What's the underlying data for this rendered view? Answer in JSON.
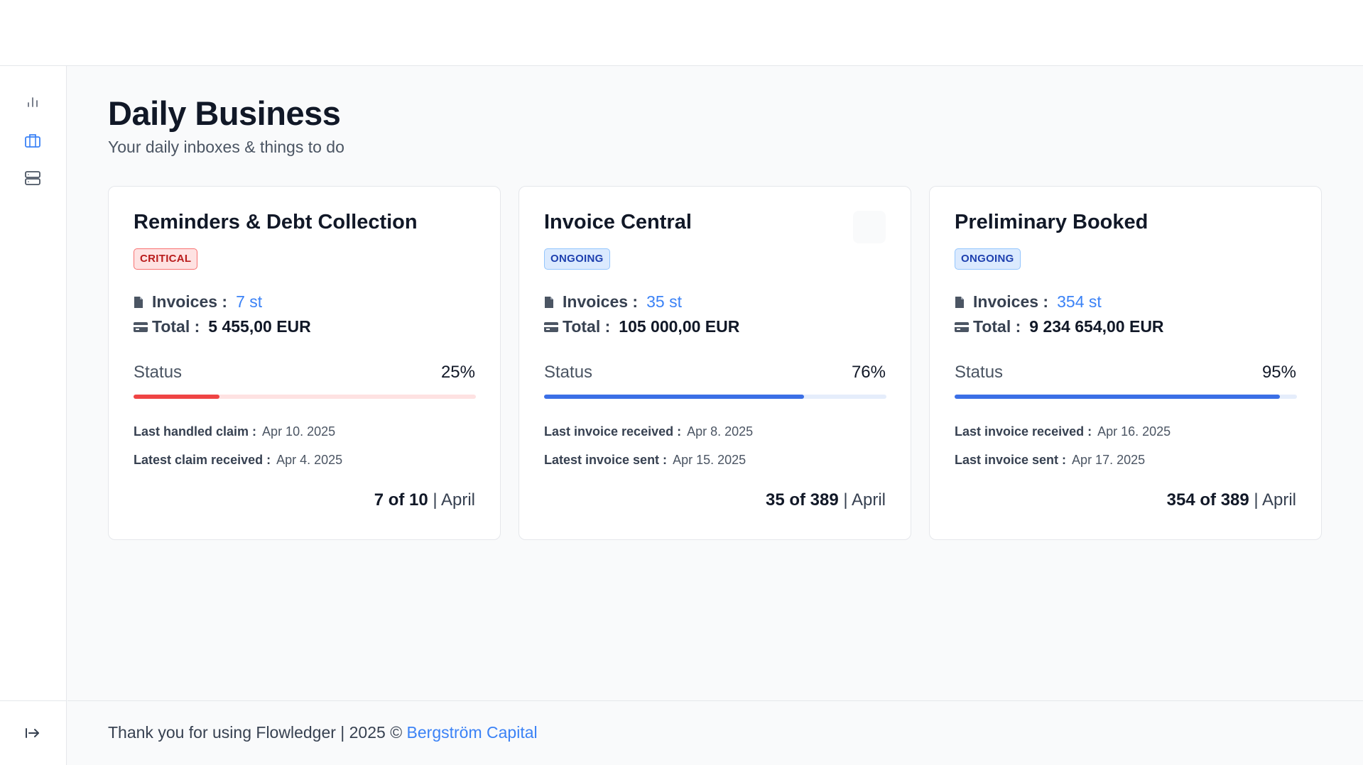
{
  "sidebar": {
    "icons": [
      "bar-chart-icon",
      "briefcase-icon",
      "server-icon"
    ],
    "bottom_icon": "logout-arrow-icon"
  },
  "header": {
    "title": "Daily Business",
    "subtitle": "Your daily inboxes & things to do"
  },
  "cards": [
    {
      "title": "Reminders & Debt Collection",
      "badge": "CRITICAL",
      "invoices_label": "Invoices :",
      "invoices_value": "7 st",
      "total_label": "Total :",
      "total_value": "5 455,00 EUR",
      "status_label": "Status",
      "status_pct": "25%",
      "progress": 0.25,
      "info1_label": "Last handled claim :",
      "info1_value": "Apr 10. 2025",
      "info2_label": "Latest claim received :",
      "info2_value": "Apr 4. 2025",
      "count": "7 of 10",
      "separator": " | ",
      "month": "April",
      "bar_color": "#ef4444",
      "track_color": "#fee2e2"
    },
    {
      "title": "Invoice Central",
      "badge": "ONGOING",
      "invoices_label": "Invoices :",
      "invoices_value": "35 st",
      "total_label": "Total :",
      "total_value": "105 000,00 EUR",
      "status_label": "Status",
      "status_pct": "76%",
      "progress": 0.76,
      "info1_label": "Last invoice received :",
      "info1_value": "Apr 8. 2025",
      "info2_label": "Latest invoice sent :",
      "info2_value": "Apr 15. 2025",
      "count": "35 of 389",
      "separator": " | ",
      "month": "April",
      "bar_color": "#3b6fe6",
      "track_color": "#e5edfb"
    },
    {
      "title": "Preliminary Booked",
      "badge": "ONGOING",
      "invoices_label": "Invoices :",
      "invoices_value": "354 st",
      "total_label": "Total :",
      "total_value": "9 234 654,00 EUR",
      "status_label": "Status",
      "status_pct": "95%",
      "progress": 0.95,
      "info1_label": "Last invoice received :",
      "info1_value": "Apr 16. 2025",
      "info2_label": "Last invoice sent :",
      "info2_value": "Apr 17. 2025",
      "count": "354 of 389",
      "separator": " | ",
      "month": "April",
      "bar_color": "#3b6fe6",
      "track_color": "#e5edfb"
    }
  ],
  "footer": {
    "text": "Thank you for using Flowledger | 2025 © ",
    "link": "Bergström Capital"
  }
}
